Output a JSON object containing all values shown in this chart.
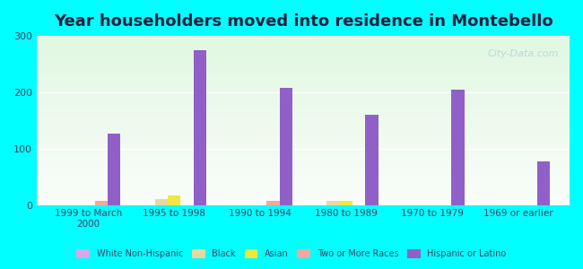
{
  "title": "Year householders moved into residence in Montebello",
  "categories": [
    "1999 to March\n2000",
    "1995 to 1998",
    "1990 to 1994",
    "1980 to 1989",
    "1970 to 1979",
    "1969 or earlier"
  ],
  "series": {
    "White Non-Hispanic": [
      0,
      0,
      0,
      0,
      0,
      0
    ],
    "Black": [
      0,
      10,
      0,
      8,
      0,
      0
    ],
    "Asian": [
      0,
      17,
      0,
      8,
      0,
      0
    ],
    "Two or More Races": [
      8,
      0,
      7,
      0,
      0,
      0
    ],
    "Hispanic or Latino": [
      127,
      275,
      208,
      160,
      205,
      78
    ]
  },
  "colors": {
    "White Non-Hispanic": "#d8a8e8",
    "Black": "#e8d8a0",
    "Asian": "#f0e840",
    "Two or More Races": "#f0a8a0",
    "Hispanic or Latino": "#9060c8"
  },
  "ylim": [
    0,
    300
  ],
  "yticks": [
    0,
    100,
    200,
    300
  ],
  "background_color": "#00ffff",
  "plot_bg_top": "#e8ffe8",
  "plot_bg_bottom": "#f8fff8",
  "bar_width": 0.15,
  "watermark": "City-Data.com"
}
